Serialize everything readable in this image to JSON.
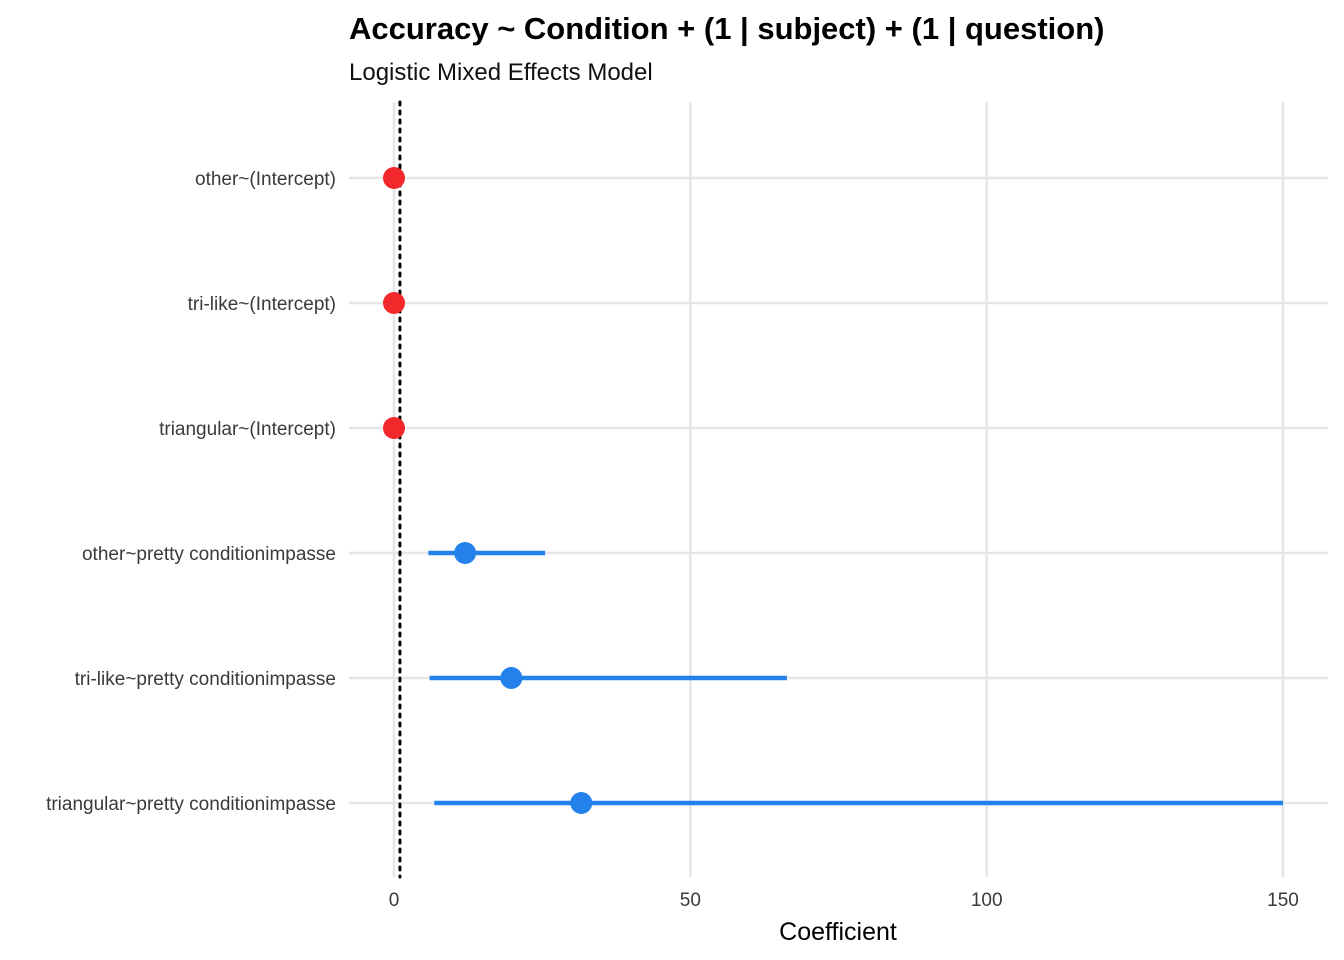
{
  "chart_data": {
    "type": "scatter",
    "subtype": "coefficient-plot",
    "title": "Accuracy ~ Condition + (1 | subject) + (1 | question)",
    "subtitle": "Logistic Mixed Effects Model",
    "xlabel": "Coefficient",
    "ylabel": "",
    "xlim": [
      -1,
      157
    ],
    "xticks": [
      0,
      50,
      100,
      150
    ],
    "reference_line": {
      "x": 1,
      "style": "dotted",
      "color": "#000000"
    },
    "grid": true,
    "colors": {
      "intercept": "#F2282B",
      "condition": "#2381EB"
    },
    "terms": [
      {
        "label": "other~(Intercept)",
        "estimate": 0.0,
        "low": null,
        "high": null,
        "group": "intercept"
      },
      {
        "label": "tri-like~(Intercept)",
        "estimate": 0.0,
        "low": null,
        "high": null,
        "group": "intercept"
      },
      {
        "label": "triangular~(Intercept)",
        "estimate": 0.0,
        "low": null,
        "high": null,
        "group": "intercept"
      },
      {
        "label": "other~pretty conditionimpasse",
        "estimate": 12.0,
        "low": 5.8,
        "high": 25.5,
        "group": "condition"
      },
      {
        "label": "tri-like~pretty conditionimpasse",
        "estimate": 19.8,
        "low": 6.0,
        "high": 66.3,
        "group": "condition"
      },
      {
        "label": "triangular~pretty conditionimpasse",
        "estimate": 31.6,
        "low": 6.8,
        "high": 150.0,
        "group": "condition"
      }
    ]
  }
}
